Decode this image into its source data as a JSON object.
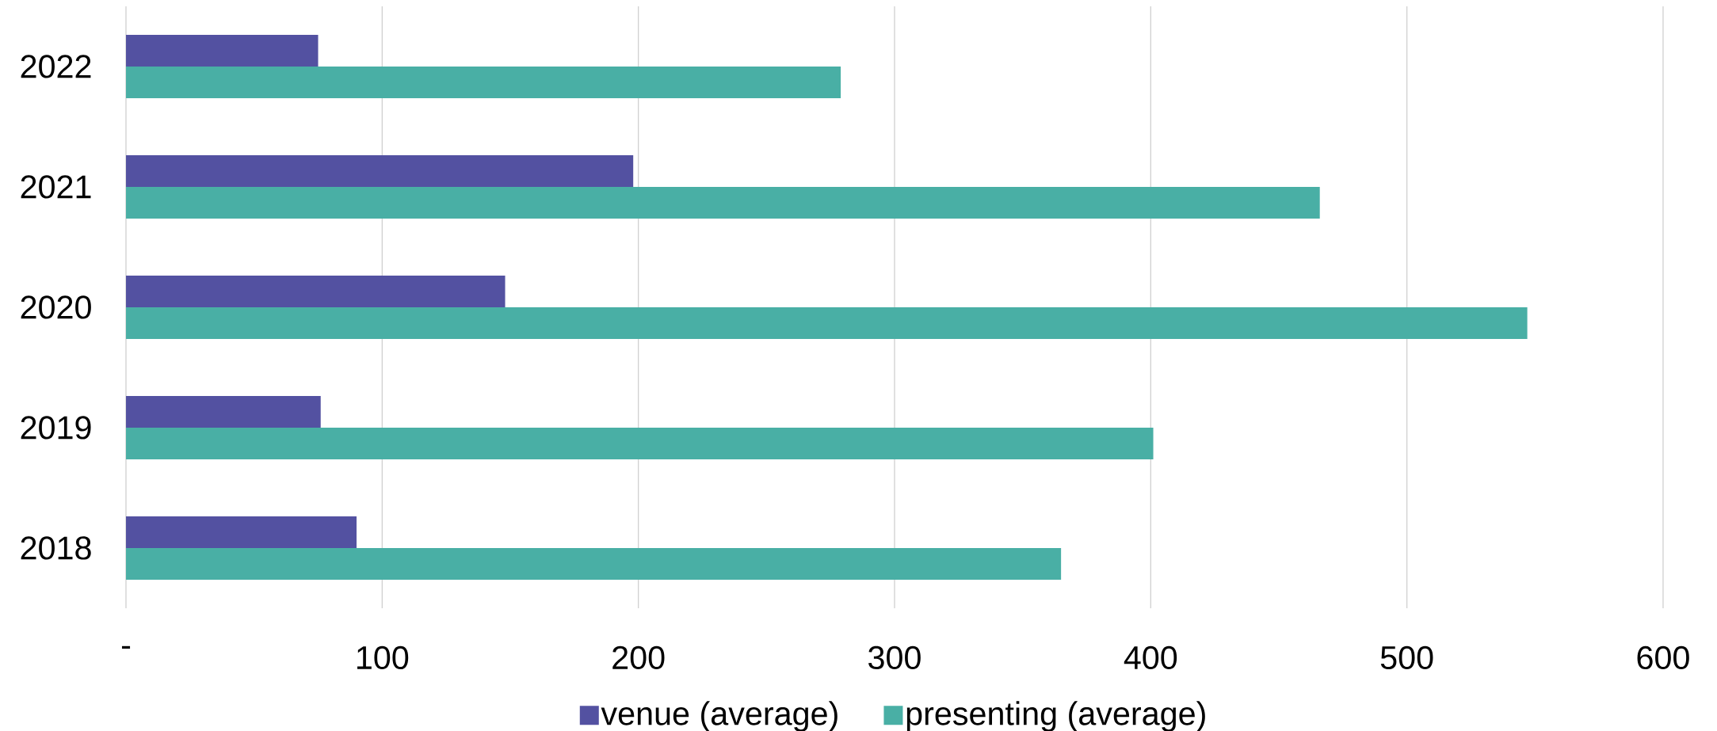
{
  "chart_data": {
    "type": "bar",
    "orientation": "horizontal",
    "categories": [
      "2022",
      "2021",
      "2020",
      "2019",
      "2018"
    ],
    "series": [
      {
        "name": "venue (average)",
        "color": "#5351a1",
        "values": [
          75,
          198,
          148,
          76,
          90
        ]
      },
      {
        "name": "presenting (average)",
        "color": "#49afa5",
        "values": [
          279,
          466,
          547,
          401,
          365
        ]
      }
    ],
    "xlim": [
      0,
      600
    ],
    "xticks": [
      {
        "value": 0,
        "label": "-"
      },
      100,
      200,
      300,
      400,
      500,
      600
    ],
    "grid": "x",
    "legend": "bottom"
  }
}
